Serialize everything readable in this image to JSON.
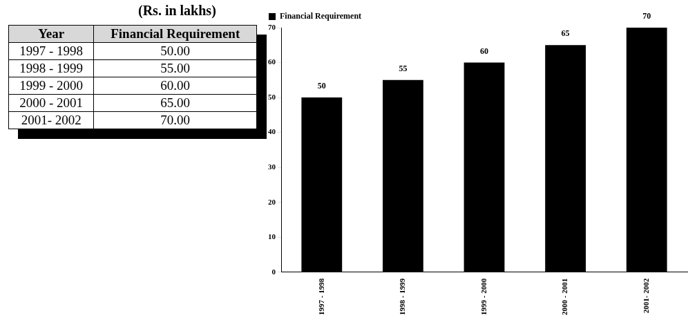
{
  "chart_data": {
    "type": "bar",
    "title": "(Rs. in lakhs)",
    "annotations": [
      "Year",
      "50.00",
      "55.00",
      "60.00",
      "65.00",
      "70.00"
    ],
    "categories": [
      "1997 - 1998",
      "1998 - 1999",
      "1999 - 2000",
      "2000 - 2001",
      "2001- 2002"
    ],
    "series": [
      {
        "name": "Financial Requirement",
        "color": "#000000",
        "values": [
          50,
          55,
          60,
          65,
          70
        ]
      }
    ],
    "ylim": [
      0,
      70
    ],
    "yticks": [
      0,
      10,
      20,
      30,
      40,
      50,
      60,
      70
    ],
    "grid": false,
    "legend": "top left",
    "data_labels": true
  }
}
